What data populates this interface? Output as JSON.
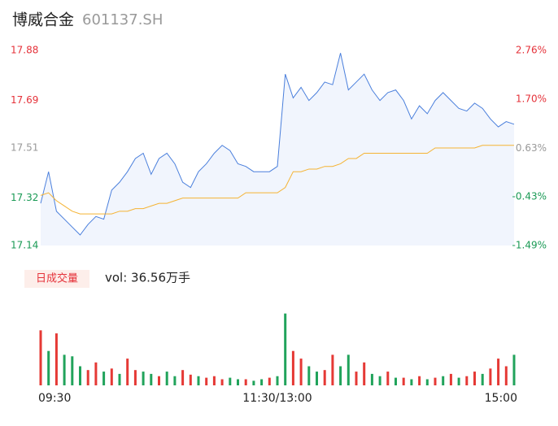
{
  "chart_data": [
    {
      "type": "line",
      "title": "博威合金",
      "subtitle": "601137.SH",
      "x": [
        0,
        4,
        8,
        12,
        16,
        20,
        24,
        28,
        32,
        36,
        40,
        44,
        48,
        52,
        56,
        60,
        64,
        68,
        72,
        76,
        80,
        84,
        88,
        92,
        96,
        100,
        104,
        108,
        112,
        116,
        120,
        124,
        128,
        132,
        136,
        140,
        144,
        148,
        152,
        156,
        160,
        164,
        168,
        172,
        176,
        180,
        184,
        188,
        192,
        196,
        200,
        204,
        208,
        212,
        216,
        220,
        224,
        228,
        232,
        236,
        240
      ],
      "xlim": [
        0,
        240
      ],
      "ylim": [
        17.14,
        17.88
      ],
      "yticks": [
        17.88,
        17.69,
        17.51,
        17.32,
        17.14
      ],
      "ytick_colors": [
        "#e5323a",
        "#e5323a",
        "#999999",
        "#1a9a55",
        "#1a9a55"
      ],
      "y2lim": [
        -1.49,
        2.76
      ],
      "y2ticks": [
        {
          "value": 2.76,
          "label": "2.76%"
        },
        {
          "value": 1.7,
          "label": "1.70%"
        },
        {
          "value": 0.63,
          "label": "0.63%"
        },
        {
          "value": -0.43,
          "label": "-0.43%"
        },
        {
          "value": -1.49,
          "label": "-1.49%"
        }
      ],
      "series": [
        {
          "color": "#4a7fdc",
          "area_color": "#f1f5fd",
          "values": [
            17.3,
            17.42,
            17.27,
            17.24,
            17.21,
            17.18,
            17.22,
            17.25,
            17.24,
            17.35,
            17.38,
            17.42,
            17.47,
            17.49,
            17.41,
            17.47,
            17.49,
            17.45,
            17.38,
            17.36,
            17.42,
            17.45,
            17.49,
            17.52,
            17.5,
            17.45,
            17.44,
            17.42,
            17.42,
            17.42,
            17.44,
            17.79,
            17.7,
            17.74,
            17.69,
            17.72,
            17.76,
            17.75,
            17.87,
            17.73,
            17.76,
            17.79,
            17.73,
            17.69,
            17.72,
            17.73,
            17.69,
            17.62,
            17.67,
            17.64,
            17.69,
            17.72,
            17.69,
            17.66,
            17.65,
            17.68,
            17.66,
            17.62,
            17.59,
            17.61,
            17.6
          ]
        },
        {
          "color": "#f5b333",
          "values": [
            17.33,
            17.34,
            17.31,
            17.29,
            17.27,
            17.26,
            17.26,
            17.26,
            17.26,
            17.26,
            17.27,
            17.27,
            17.28,
            17.28,
            17.29,
            17.3,
            17.3,
            17.31,
            17.32,
            17.32,
            17.32,
            17.32,
            17.32,
            17.32,
            17.32,
            17.32,
            17.34,
            17.34,
            17.34,
            17.34,
            17.34,
            17.36,
            17.42,
            17.42,
            17.43,
            17.43,
            17.44,
            17.44,
            17.45,
            17.47,
            17.47,
            17.49,
            17.49,
            17.49,
            17.49,
            17.49,
            17.49,
            17.49,
            17.49,
            17.49,
            17.51,
            17.51,
            17.51,
            17.51,
            17.51,
            17.51,
            17.52,
            17.52,
            17.52,
            17.52,
            17.52
          ]
        }
      ]
    },
    {
      "type": "bar",
      "button": "日成交量",
      "label": "vol: 36.56万手",
      "ylim": [
        0,
        100
      ],
      "xticks": [
        {
          "value": 0,
          "label": "09:30"
        },
        {
          "value": 120,
          "label": "11:30/13:00"
        },
        {
          "value": 240,
          "label": "15:00"
        }
      ],
      "values": [
        72,
        45,
        68,
        40,
        38,
        25,
        20,
        30,
        18,
        22,
        15,
        35,
        20,
        18,
        15,
        12,
        18,
        12,
        20,
        14,
        12,
        10,
        12,
        8,
        10,
        8,
        8,
        6,
        8,
        10,
        12,
        94,
        45,
        35,
        25,
        18,
        20,
        40,
        25,
        40,
        18,
        30,
        15,
        12,
        18,
        10,
        10,
        8,
        12,
        8,
        10,
        12,
        15,
        10,
        12,
        18,
        15,
        22,
        35,
        25,
        40
      ],
      "colors": [
        "#e53935",
        "#21a35b",
        "#e53935",
        "#21a35b",
        "#21a35b",
        "#21a35b",
        "#e53935",
        "#e53935",
        "#21a35b",
        "#e53935",
        "#21a35b",
        "#e53935",
        "#e53935",
        "#21a35b",
        "#21a35b",
        "#e53935",
        "#21a35b",
        "#21a35b",
        "#e53935",
        "#e53935",
        "#21a35b",
        "#e53935",
        "#e53935",
        "#e53935",
        "#21a35b",
        "#21a35b",
        "#e53935",
        "#21a35b",
        "#21a35b",
        "#e53935",
        "#21a35b",
        "#21a35b",
        "#e53935",
        "#e53935",
        "#21a35b",
        "#21a35b",
        "#e53935",
        "#e53935",
        "#21a35b",
        "#21a35b",
        "#e53935",
        "#e53935",
        "#21a35b",
        "#21a35b",
        "#e53935",
        "#21a35b",
        "#e53935",
        "#21a35b",
        "#e53935",
        "#21a35b",
        "#e53935",
        "#21a35b",
        "#e53935",
        "#21a35b",
        "#e53935",
        "#e53935",
        "#21a35b",
        "#e53935",
        "#e53935",
        "#e53935",
        "#21a35b"
      ]
    }
  ]
}
